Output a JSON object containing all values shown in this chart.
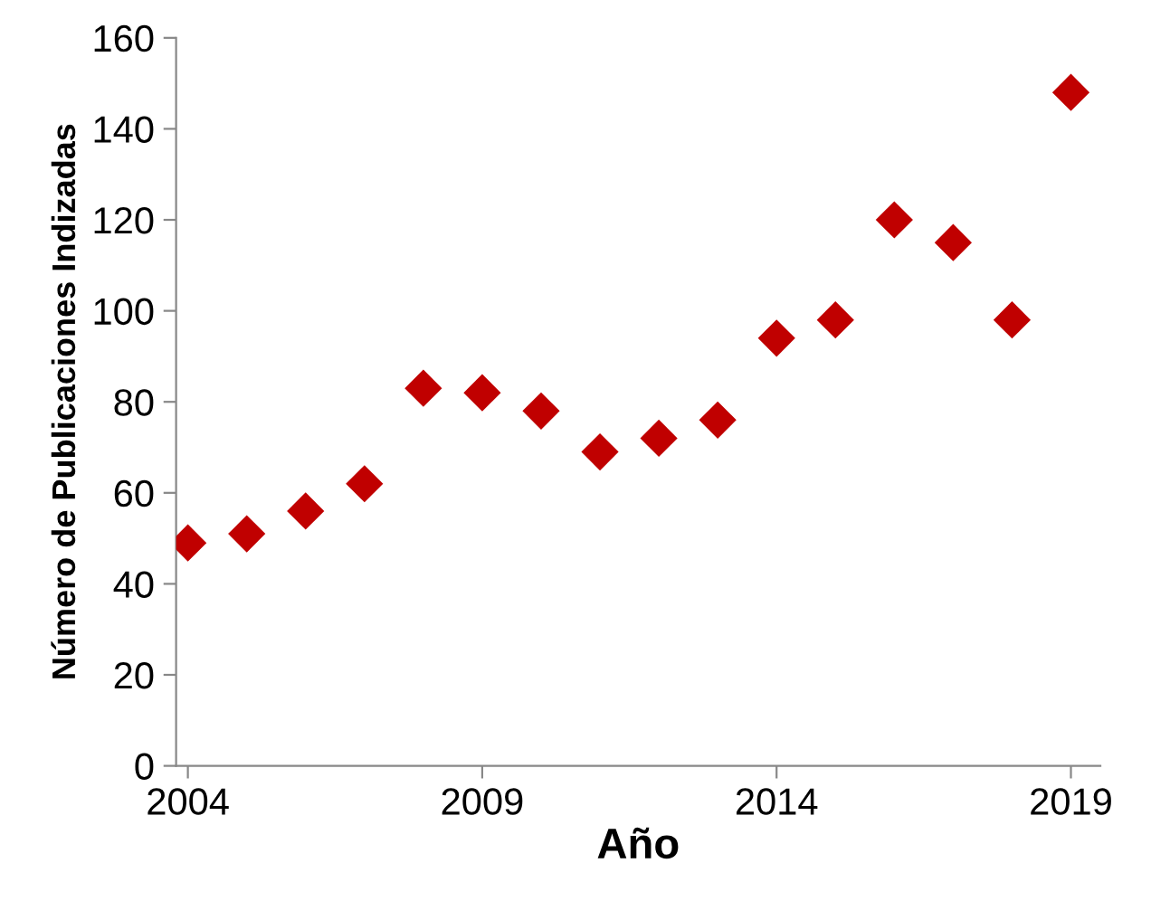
{
  "chart_data": {
    "type": "scatter",
    "xlabel": "Año",
    "ylabel": "Número de Publicaciones Indizadas",
    "x": [
      2004,
      2005,
      2006,
      2007,
      2008,
      2009,
      2010,
      2011,
      2012,
      2013,
      2014,
      2015,
      2016,
      2017,
      2018,
      2019
    ],
    "series": [
      {
        "color": "#c00000",
        "values": [
          49,
          51,
          56,
          62,
          83,
          82,
          78,
          69,
          72,
          76,
          94,
          98,
          120,
          115,
          98,
          148
        ]
      }
    ],
    "xlim": [
      2003.8,
      2019.5
    ],
    "xticks": [
      2004,
      2009,
      2014,
      2019
    ],
    "ylim": [
      0,
      160
    ],
    "yticks": [
      0,
      20,
      40,
      60,
      80,
      100,
      120,
      140,
      160
    ],
    "marker": "diamond",
    "grid": false,
    "legend": false
  }
}
